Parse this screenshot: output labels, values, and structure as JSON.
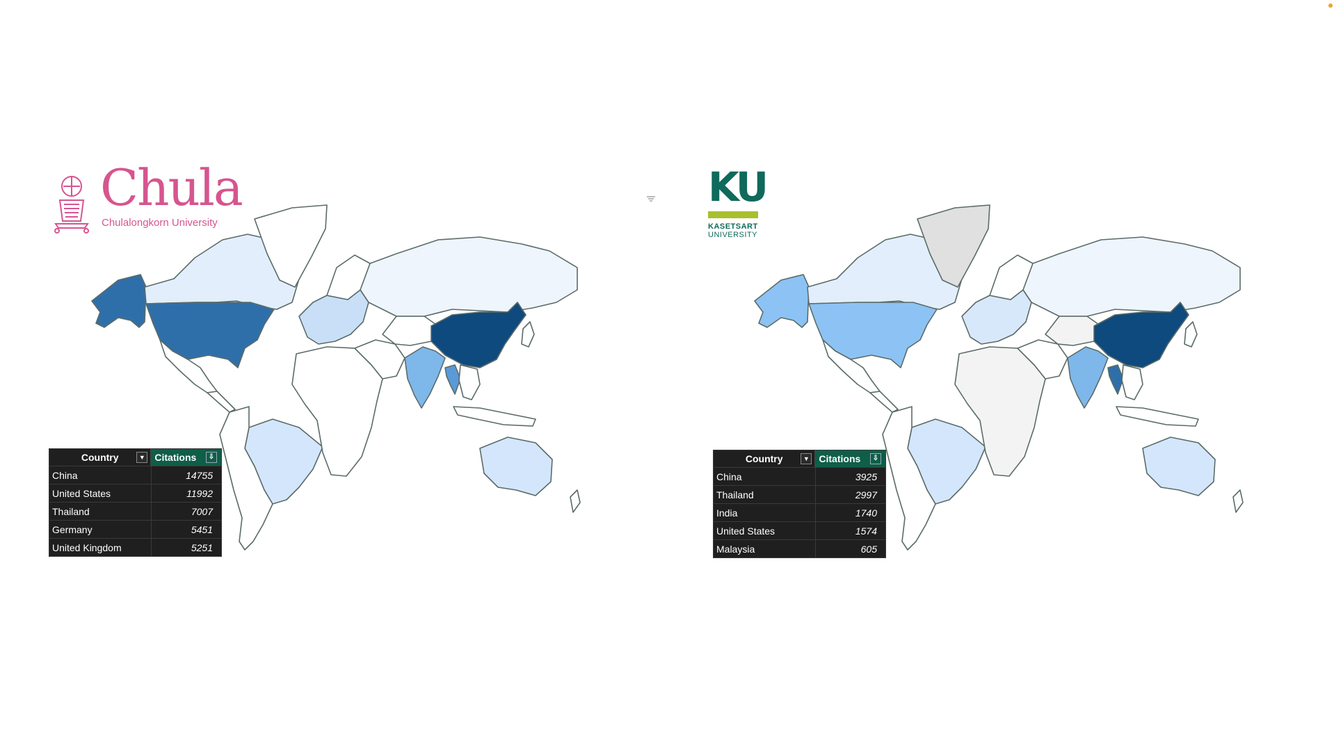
{
  "chula": {
    "logo": {
      "name": "Chula",
      "subtitle": "Chulalongkorn University",
      "color": "#d6558f"
    },
    "table": {
      "headers": {
        "country": "Country",
        "citations": "Citations"
      },
      "rows": [
        {
          "country": "China",
          "citations": "14755"
        },
        {
          "country": "United States",
          "citations": "11992"
        },
        {
          "country": "Thailand",
          "citations": "7007"
        },
        {
          "country": "Germany",
          "citations": "5451"
        },
        {
          "country": "United Kingdom",
          "citations": "5251"
        }
      ]
    },
    "shading": {
      "China": "#0e4a7d",
      "United States": "#2f6fa9",
      "Alaska": "#2f6fa9",
      "India": "#7eb7ea",
      "Thailand": "#5a9ad8",
      "Canada": "#e2eefc",
      "Russia": "#eef5fd",
      "Brazil": "#d4e6fb",
      "Australia": "#d4e6fb",
      "Greenland": "#ffffff",
      "Europe": "#c9dff8"
    }
  },
  "ku": {
    "logo": {
      "name": "KU",
      "line1": "KASETSART",
      "line2": "UNIVERSITY",
      "color": "#0f6a5c",
      "accent": "#a9bf2f"
    },
    "table": {
      "headers": {
        "country": "Country",
        "citations": "Citations"
      },
      "rows": [
        {
          "country": "China",
          "citations": "3925"
        },
        {
          "country": "Thailand",
          "citations": "2997"
        },
        {
          "country": "India",
          "citations": "1740"
        },
        {
          "country": "United States",
          "citations": "1574"
        },
        {
          "country": "Malaysia",
          "citations": "605"
        }
      ]
    },
    "shading": {
      "China": "#0e4a7d",
      "United States": "#8cc3f4",
      "Alaska": "#8cc3f4",
      "India": "#7eb7ea",
      "Thailand": "#2f6fa9",
      "Canada": "#e2eefc",
      "Russia": "#eef5fd",
      "Brazil": "#d4e6fb",
      "Australia": "#d4e6fb",
      "Greenland": "#e0e0e0",
      "Europe": "#d8e8fb"
    }
  },
  "icons": [
    "sort-icon",
    "dropdown-icon",
    "chula-emblem-icon",
    "filter-icon"
  ]
}
